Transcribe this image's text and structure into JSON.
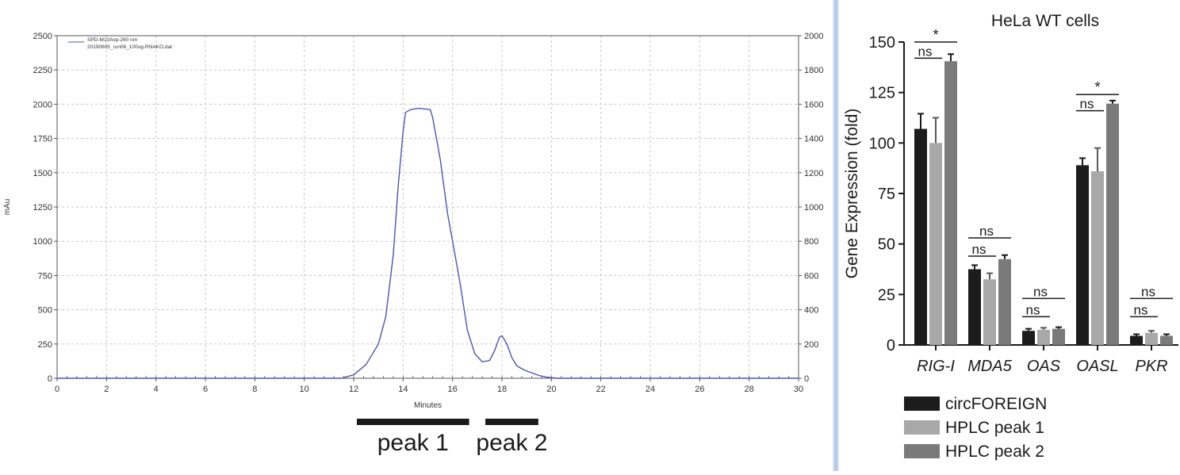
{
  "chart_data": [
    {
      "type": "line",
      "xlabel": "Minutes",
      "ylabel": "mAu",
      "xlim": [
        0,
        30
      ],
      "ylim": [
        0,
        2500
      ],
      "y2lim": [
        0,
        2000
      ],
      "grid": true,
      "legend_position": "top-left",
      "x_ticks": [
        0,
        2,
        4,
        6,
        8,
        10,
        12,
        14,
        16,
        18,
        20,
        22,
        24,
        26,
        28,
        30
      ],
      "y_ticks": [
        0,
        250,
        500,
        750,
        1000,
        1250,
        1500,
        1750,
        2000,
        2250,
        2500
      ],
      "y2_ticks": [
        0,
        200,
        400,
        600,
        800,
        1000,
        1200,
        1400,
        1600,
        1800,
        2000
      ],
      "legend": [
        "SPD-M10Avp-260 nm",
        "20190605_run06_100ug-RNAKO.dat"
      ],
      "series": [
        {
          "name": "SPD-M10Avp-260 nm",
          "color": "#4a55b5",
          "x": [
            0,
            11.5,
            12,
            12.5,
            13,
            13.3,
            13.6,
            13.8,
            14.0,
            14.1,
            14.3,
            14.6,
            14.9,
            15.1,
            15.2,
            15.5,
            15.8,
            16.0,
            16.3,
            16.6,
            16.9,
            17.2,
            17.5,
            17.7,
            17.9,
            18.0,
            18.2,
            18.4,
            18.6,
            18.9,
            19.2,
            19.5,
            19.8,
            20.2,
            30
          ],
          "y": [
            0,
            0,
            25,
            100,
            250,
            450,
            900,
            1400,
            1800,
            1940,
            1960,
            1970,
            1965,
            1960,
            1900,
            1600,
            1200,
            1000,
            700,
            350,
            180,
            120,
            130,
            200,
            300,
            310,
            250,
            150,
            90,
            60,
            40,
            20,
            8,
            0,
            0
          ]
        }
      ],
      "annotations": [
        {
          "label": "peak 1",
          "x_range": [
            12.0,
            16.8
          ]
        },
        {
          "label": "peak 2",
          "x_range": [
            17.2,
            19.6
          ]
        }
      ]
    },
    {
      "type": "bar",
      "title": "HeLa WT cells",
      "ylabel": "Gene Expression (fold)",
      "ylim": [
        0,
        150
      ],
      "y_ticks": [
        0,
        25,
        50,
        75,
        100,
        125,
        150
      ],
      "categories": [
        "RIG-I",
        "MDA5",
        "OAS",
        "OASL",
        "PKR"
      ],
      "legend_position": "bottom",
      "series": [
        {
          "name": "circFOREIGN",
          "color": "#1c1c1c",
          "values": [
            107,
            37.5,
            7,
            89,
            4.5
          ],
          "errors": [
            7.5,
            2,
            1,
            3.5,
            0.8
          ]
        },
        {
          "name": "HPLC peak 1",
          "color": "#a8a8a8",
          "values": [
            100,
            32.5,
            7.5,
            86,
            6
          ],
          "errors": [
            12.5,
            3,
            1,
            11.5,
            1
          ]
        },
        {
          "name": "HPLC peak 2",
          "color": "#7a7a7a",
          "values": [
            140.5,
            42.5,
            8,
            119.5,
            4.5
          ],
          "errors": [
            3.5,
            2,
            0.8,
            1.5,
            0.8
          ]
        }
      ],
      "significance": [
        {
          "category": "RIG-I",
          "pair": [
            0,
            1
          ],
          "label": "ns",
          "y": 142
        },
        {
          "category": "RIG-I",
          "pair": [
            0,
            2
          ],
          "label": "*",
          "y": 150
        },
        {
          "category": "MDA5",
          "pair": [
            0,
            1
          ],
          "label": "ns",
          "y": 44
        },
        {
          "category": "MDA5",
          "pair": [
            0,
            2
          ],
          "label": "ns",
          "y": 53
        },
        {
          "category": "OAS",
          "pair": [
            0,
            1
          ],
          "label": "ns",
          "y": 14
        },
        {
          "category": "OAS",
          "pair": [
            0,
            2
          ],
          "label": "ns",
          "y": 23
        },
        {
          "category": "OASL",
          "pair": [
            0,
            1
          ],
          "label": "ns",
          "y": 116
        },
        {
          "category": "OASL",
          "pair": [
            0,
            2
          ],
          "label": "*",
          "y": 124
        },
        {
          "category": "PKR",
          "pair": [
            0,
            1
          ],
          "label": "ns",
          "y": 14
        },
        {
          "category": "PKR",
          "pair": [
            0,
            2
          ],
          "label": "ns",
          "y": 23
        }
      ]
    }
  ]
}
